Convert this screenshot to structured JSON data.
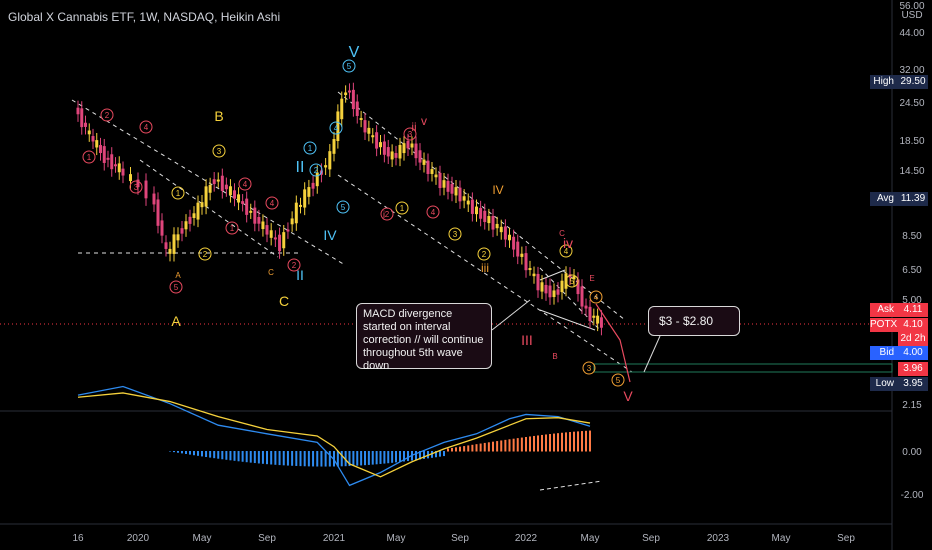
{
  "header": {
    "title": "Global X Cannabis ETF, 1W, NASDAQ, Heikin Ashi"
  },
  "colors": {
    "background": "#000000",
    "bull_candle": "#f5d13c",
    "bear_candle": "#e0457b",
    "wave_orange": "#f2a033",
    "wave_red": "#e84a5f",
    "wave_cyan": "#4fc3f7",
    "macd_line": "#2e8bf0",
    "signal_line": "#f5d13c",
    "hist_pos": "#2e8bf0",
    "hist_neg": "#ff7a45",
    "price_label_bg": "#f23645",
    "highlight_box": "#1f7a5a"
  },
  "price_scale": {
    "unit": "USD",
    "ticks": [
      "56.00",
      "44.00",
      "32.00",
      "24.50",
      "18.50",
      "14.50",
      "8.50",
      "6.50",
      "5.00",
      "2.15"
    ],
    "labels": [
      {
        "name": "High",
        "value": "29.50"
      },
      {
        "name": "Avg",
        "value": "11.39"
      },
      {
        "name": "Ask",
        "value": "4.11"
      },
      {
        "name": "POTX",
        "value": "4.10"
      },
      {
        "name": "countdown",
        "value": "2d 2h"
      },
      {
        "name": "Bid",
        "value": "4.00"
      },
      {
        "name": "box",
        "value": "3.96"
      },
      {
        "name": "Low",
        "value": "3.95"
      }
    ]
  },
  "macd_scale": {
    "ticks": [
      "0.00",
      "-2.00"
    ]
  },
  "time_axis": {
    "labels": [
      "16",
      "2020",
      "May",
      "Sep",
      "2021",
      "May",
      "Sep",
      "2022",
      "May",
      "Sep",
      "2023",
      "May",
      "Sep"
    ]
  },
  "annotations": {
    "callout_macd": "MACD divergence started on interval correction // will continue throughout 5th wave down",
    "callout_target": "$3 - $2.80",
    "wave_letters": [
      "A",
      "B",
      "C",
      "A",
      "C",
      "V",
      "IV",
      "III",
      "V",
      "II",
      "II",
      "IV",
      "B",
      "C",
      "E"
    ],
    "wave_numbers": [
      "1",
      "2",
      "3",
      "4",
      "5",
      "1",
      "2",
      "3",
      "4",
      "5",
      "i",
      "ii",
      "iii",
      "iv",
      "v"
    ]
  },
  "chart_data": {
    "type": "candlestick",
    "title": "Global X Cannabis ETF, 1W, NASDAQ, Heikin Ashi",
    "x_unit": "week",
    "x_range": [
      "2019-09",
      "2023-10"
    ],
    "y_scale": "log",
    "ylim": [
      2.15,
      56.0
    ],
    "high": 29.5,
    "low": 3.95,
    "average": 11.39,
    "last": 4.1,
    "bid": 4.0,
    "ask": 4.11,
    "target_range": [
      2.8,
      3.0
    ],
    "price_path": [
      {
        "t": "2019-09",
        "p": 24.0
      },
      {
        "t": "2019-10",
        "p": 19.0
      },
      {
        "t": "2019-11",
        "p": 16.0
      },
      {
        "t": "2019-12",
        "p": 14.5
      },
      {
        "t": "2020-02",
        "p": 12.0
      },
      {
        "t": "2020-03",
        "p": 7.2
      },
      {
        "t": "2020-04",
        "p": 9.0
      },
      {
        "t": "2020-05",
        "p": 10.5
      },
      {
        "t": "2020-06",
        "p": 13.5
      },
      {
        "t": "2020-07",
        "p": 12.0
      },
      {
        "t": "2020-08",
        "p": 10.5
      },
      {
        "t": "2020-09",
        "p": 9.0
      },
      {
        "t": "2020-10",
        "p": 7.8
      },
      {
        "t": "2020-11",
        "p": 10.5
      },
      {
        "t": "2020-12",
        "p": 13.0
      },
      {
        "t": "2021-01",
        "p": 16.0
      },
      {
        "t": "2021-02",
        "p": 28.5
      },
      {
        "t": "2021-03",
        "p": 21.0
      },
      {
        "t": "2021-04",
        "p": 18.0
      },
      {
        "t": "2021-05",
        "p": 16.0
      },
      {
        "t": "2021-06",
        "p": 18.0
      },
      {
        "t": "2021-07",
        "p": 15.0
      },
      {
        "t": "2021-08",
        "p": 13.0
      },
      {
        "t": "2021-09",
        "p": 12.0
      },
      {
        "t": "2021-10",
        "p": 10.5
      },
      {
        "t": "2021-11",
        "p": 9.5
      },
      {
        "t": "2021-12",
        "p": 8.5
      },
      {
        "t": "2022-01",
        "p": 7.0
      },
      {
        "t": "2022-02",
        "p": 5.6
      },
      {
        "t": "2022-03",
        "p": 5.2
      },
      {
        "t": "2022-04",
        "p": 6.2
      },
      {
        "t": "2022-05",
        "p": 4.5
      },
      {
        "t": "2022-06",
        "p": 4.1
      }
    ],
    "macd": {
      "ylim": [
        -3.2,
        1.6
      ],
      "macd_line": [
        {
          "t": "2019-09",
          "v": -2.6
        },
        {
          "t": "2019-12",
          "v": -3.0
        },
        {
          "t": "2020-03",
          "v": -2.2
        },
        {
          "t": "2020-06",
          "v": -1.2
        },
        {
          "t": "2020-09",
          "v": -0.8
        },
        {
          "t": "2020-12",
          "v": -0.4
        },
        {
          "t": "2021-01",
          "v": 0.4
        },
        {
          "t": "2021-02",
          "v": 1.6
        },
        {
          "t": "2021-04",
          "v": 1.0
        },
        {
          "t": "2021-06",
          "v": 0.2
        },
        {
          "t": "2021-08",
          "v": -0.4
        },
        {
          "t": "2021-10",
          "v": -0.8
        },
        {
          "t": "2021-12",
          "v": -1.5
        },
        {
          "t": "2022-01",
          "v": -1.7
        },
        {
          "t": "2022-03",
          "v": -1.6
        },
        {
          "t": "2022-05",
          "v": -1.15
        }
      ],
      "signal_line": [
        {
          "t": "2019-09",
          "v": -2.5
        },
        {
          "t": "2019-12",
          "v": -2.7
        },
        {
          "t": "2020-03",
          "v": -2.3
        },
        {
          "t": "2020-06",
          "v": -1.6
        },
        {
          "t": "2020-09",
          "v": -1.0
        },
        {
          "t": "2020-12",
          "v": -0.7
        },
        {
          "t": "2021-01",
          "v": -0.2
        },
        {
          "t": "2021-02",
          "v": 0.6
        },
        {
          "t": "2021-04",
          "v": 1.2
        },
        {
          "t": "2021-06",
          "v": 0.5
        },
        {
          "t": "2021-08",
          "v": -0.1
        },
        {
          "t": "2021-10",
          "v": -0.6
        },
        {
          "t": "2021-12",
          "v": -1.2
        },
        {
          "t": "2022-01",
          "v": -1.5
        },
        {
          "t": "2022-03",
          "v": -1.55
        },
        {
          "t": "2022-05",
          "v": -1.3
        }
      ]
    }
  }
}
